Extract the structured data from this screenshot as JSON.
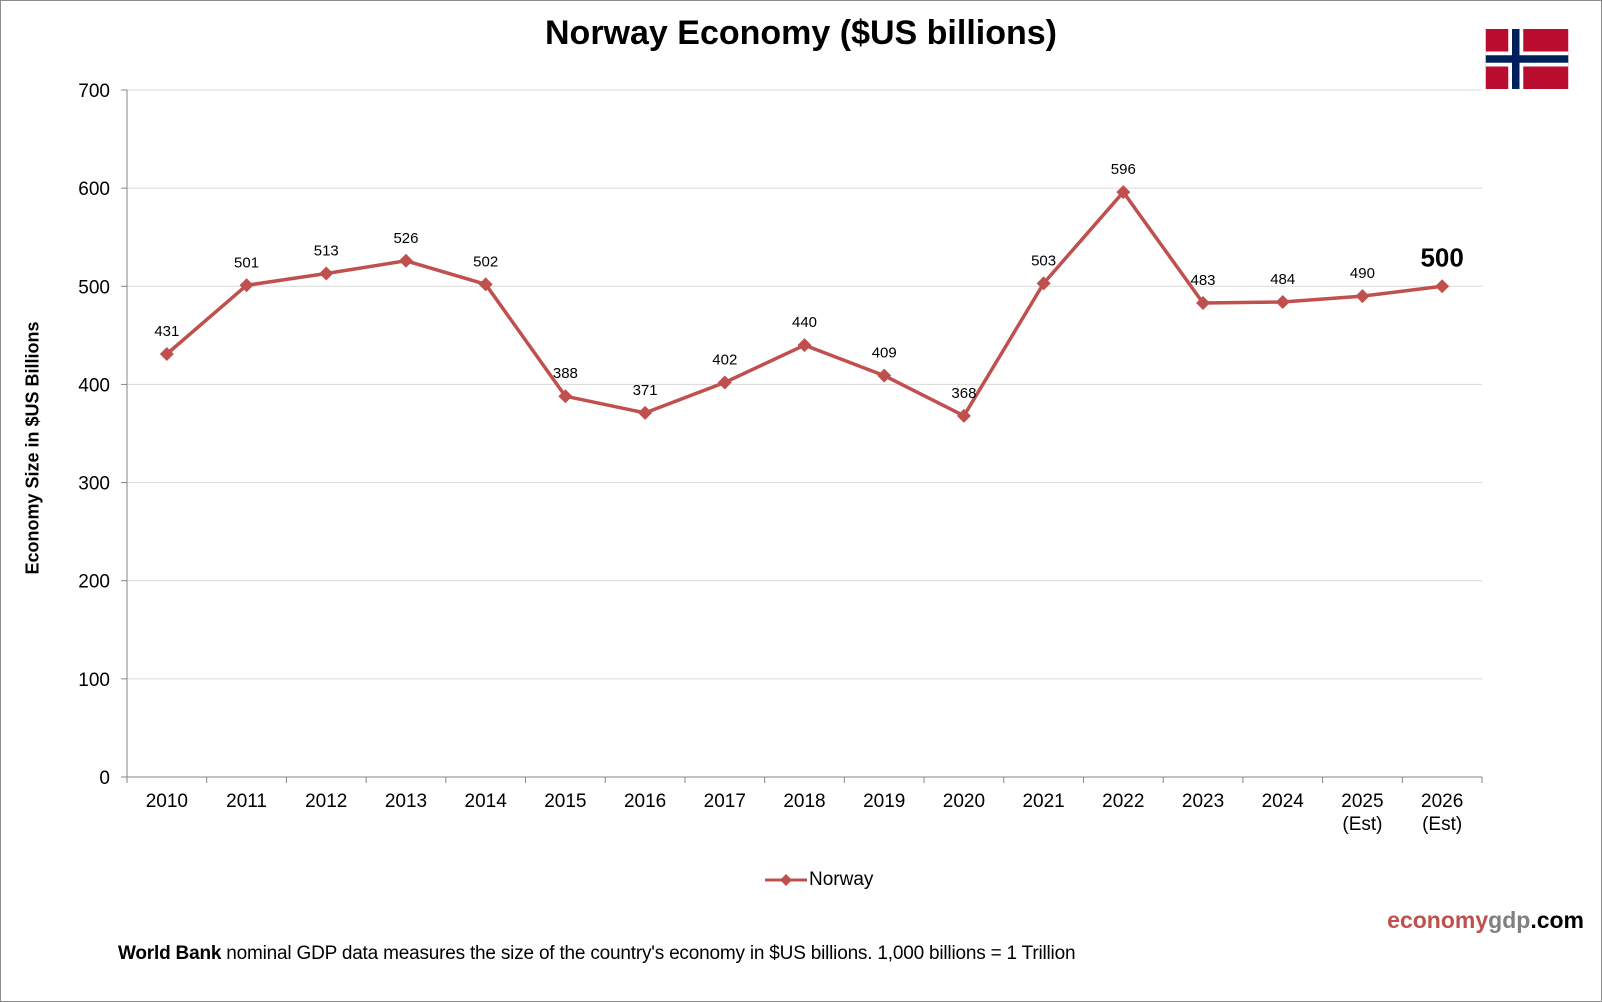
{
  "brand": {
    "part1": "economy",
    "part2": "gdp",
    "part3": ".com"
  },
  "footer": {
    "bold": "World Bank",
    "text": " nominal GDP data  measures the size of the country's economy in $US billions.  1,000 billions = 1 Trillion"
  },
  "flag": {
    "icon": "norway-flag-icon",
    "red": "#ba0c2f",
    "blue": "#00205b",
    "white": "#ffffff"
  },
  "chart_data": {
    "type": "line",
    "title": "Norway Economy ($US billions)",
    "xlabel": "",
    "ylabel": "Economy Size in $US Billions",
    "ylim": [
      0,
      700
    ],
    "yticks": [
      0,
      100,
      200,
      300,
      400,
      500,
      600,
      700
    ],
    "grid": true,
    "legend_position": "bottom-center",
    "categories": [
      "2010",
      "2011",
      "2012",
      "2013",
      "2014",
      "2015",
      "2016",
      "2017",
      "2018",
      "2019",
      "2020",
      "2021",
      "2022",
      "2023",
      "2024",
      "2025\n(Est)",
      "2026\n(Est)"
    ],
    "series": [
      {
        "name": "Norway",
        "color": "#c0504d",
        "marker": "diamond",
        "values": [
          431,
          501,
          513,
          526,
          502,
          388,
          371,
          402,
          440,
          409,
          368,
          503,
          596,
          483,
          484,
          490,
          500
        ],
        "labels": [
          "431",
          "501",
          "513",
          "526",
          "502",
          "388",
          "371",
          "402",
          "440",
          "409",
          "368",
          "503",
          "596",
          "483",
          "484",
          "490",
          "500"
        ],
        "highlight_last_label": true
      }
    ]
  }
}
